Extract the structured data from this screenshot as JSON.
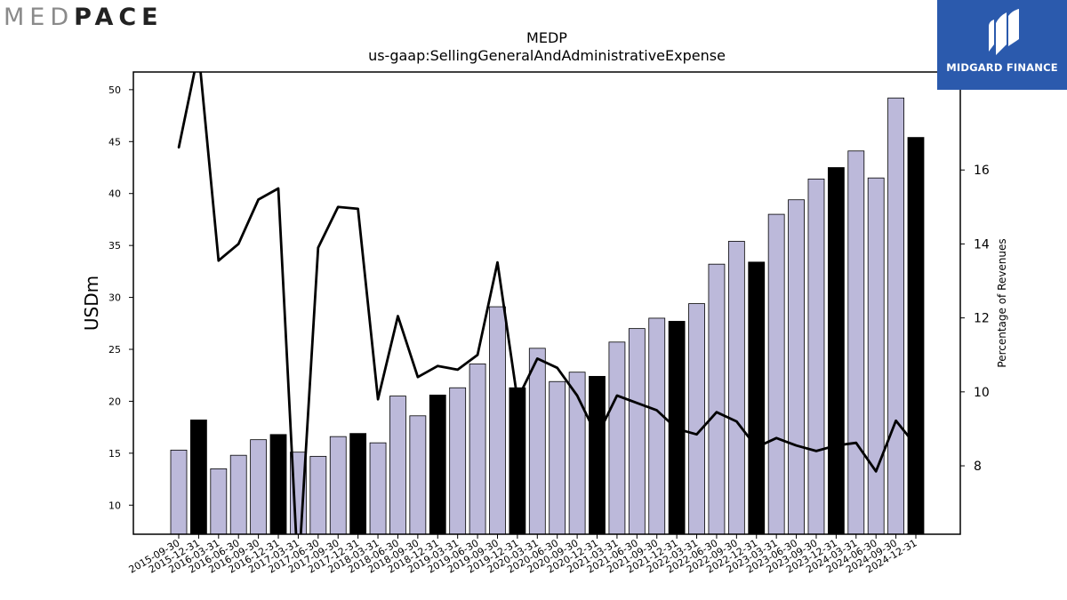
{
  "logos": {
    "left_part1": "MED",
    "left_part2": "PACE",
    "right_name": "MIDGARD FINANCE"
  },
  "colors": {
    "bar_default": "#bcb9da",
    "bar_highlight": "#000000",
    "line": "#000000",
    "brand_right": "#2b5aad"
  },
  "chart_data": {
    "type": "bar",
    "title": "MEDP",
    "subtitle": "us-gaap:SellingGeneralAndAdministrativeExpense",
    "ylabel": "USDm",
    "y2label": "Percentage of Revenues",
    "ylim": [
      7.2,
      51.7
    ],
    "y2lim": [
      6.15,
      18.65
    ],
    "yticks": [
      10,
      15,
      20,
      25,
      30,
      35,
      40,
      45,
      50
    ],
    "y2ticks": [
      8,
      10,
      12,
      14,
      16
    ],
    "categories": [
      "2015-09-30",
      "2015-12-31",
      "2016-03-31",
      "2016-06-30",
      "2016-09-30",
      "2016-12-31",
      "2017-03-31",
      "2017-06-30",
      "2017-09-30",
      "2017-12-31",
      "2018-03-31",
      "2018-06-30",
      "2018-09-30",
      "2018-12-31",
      "2019-03-31",
      "2019-06-30",
      "2019-09-30",
      "2019-12-31",
      "2020-03-31",
      "2020-06-30",
      "2020-09-30",
      "2020-12-31",
      "2021-03-31",
      "2021-06-30",
      "2021-09-30",
      "2021-12-31",
      "2022-03-31",
      "2022-06-30",
      "2022-09-30",
      "2022-12-31",
      "2023-03-31",
      "2023-06-30",
      "2023-09-30",
      "2023-12-31",
      "2024-03-31",
      "2024-06-30",
      "2024-09-30",
      "2024-12-31"
    ],
    "series": [
      {
        "type": "bar",
        "values": [
          15.3,
          18.2,
          13.5,
          14.8,
          16.3,
          16.8,
          15.1,
          14.7,
          16.6,
          16.9,
          16.0,
          20.5,
          18.6,
          20.6,
          21.3,
          23.6,
          29.1,
          21.3,
          25.1,
          21.9,
          22.8,
          22.4,
          25.7,
          27.0,
          28.0,
          27.7,
          29.4,
          33.2,
          35.4,
          33.4,
          38.0,
          39.4,
          41.4,
          42.5,
          44.1,
          41.5,
          49.2,
          45.4
        ],
        "highlight": [
          false,
          true,
          false,
          false,
          false,
          true,
          false,
          false,
          false,
          true,
          false,
          false,
          false,
          true,
          false,
          false,
          false,
          true,
          false,
          false,
          false,
          true,
          false,
          false,
          false,
          true,
          false,
          false,
          false,
          true,
          false,
          false,
          false,
          true,
          false,
          false,
          false,
          true
        ]
      },
      {
        "type": "line",
        "axis": "right",
        "values": [
          16.6,
          19.2,
          13.55,
          14.0,
          15.2,
          15.5,
          5.0,
          13.9,
          15.0,
          14.95,
          9.8,
          12.05,
          10.4,
          10.7,
          10.6,
          11.0,
          13.5,
          9.8,
          10.9,
          10.65,
          9.9,
          8.8,
          9.9,
          9.7,
          9.5,
          9.0,
          8.85,
          9.45,
          9.2,
          8.5,
          8.75,
          8.55,
          8.4,
          8.55,
          8.62,
          7.85,
          9.22,
          8.55
        ]
      }
    ]
  }
}
